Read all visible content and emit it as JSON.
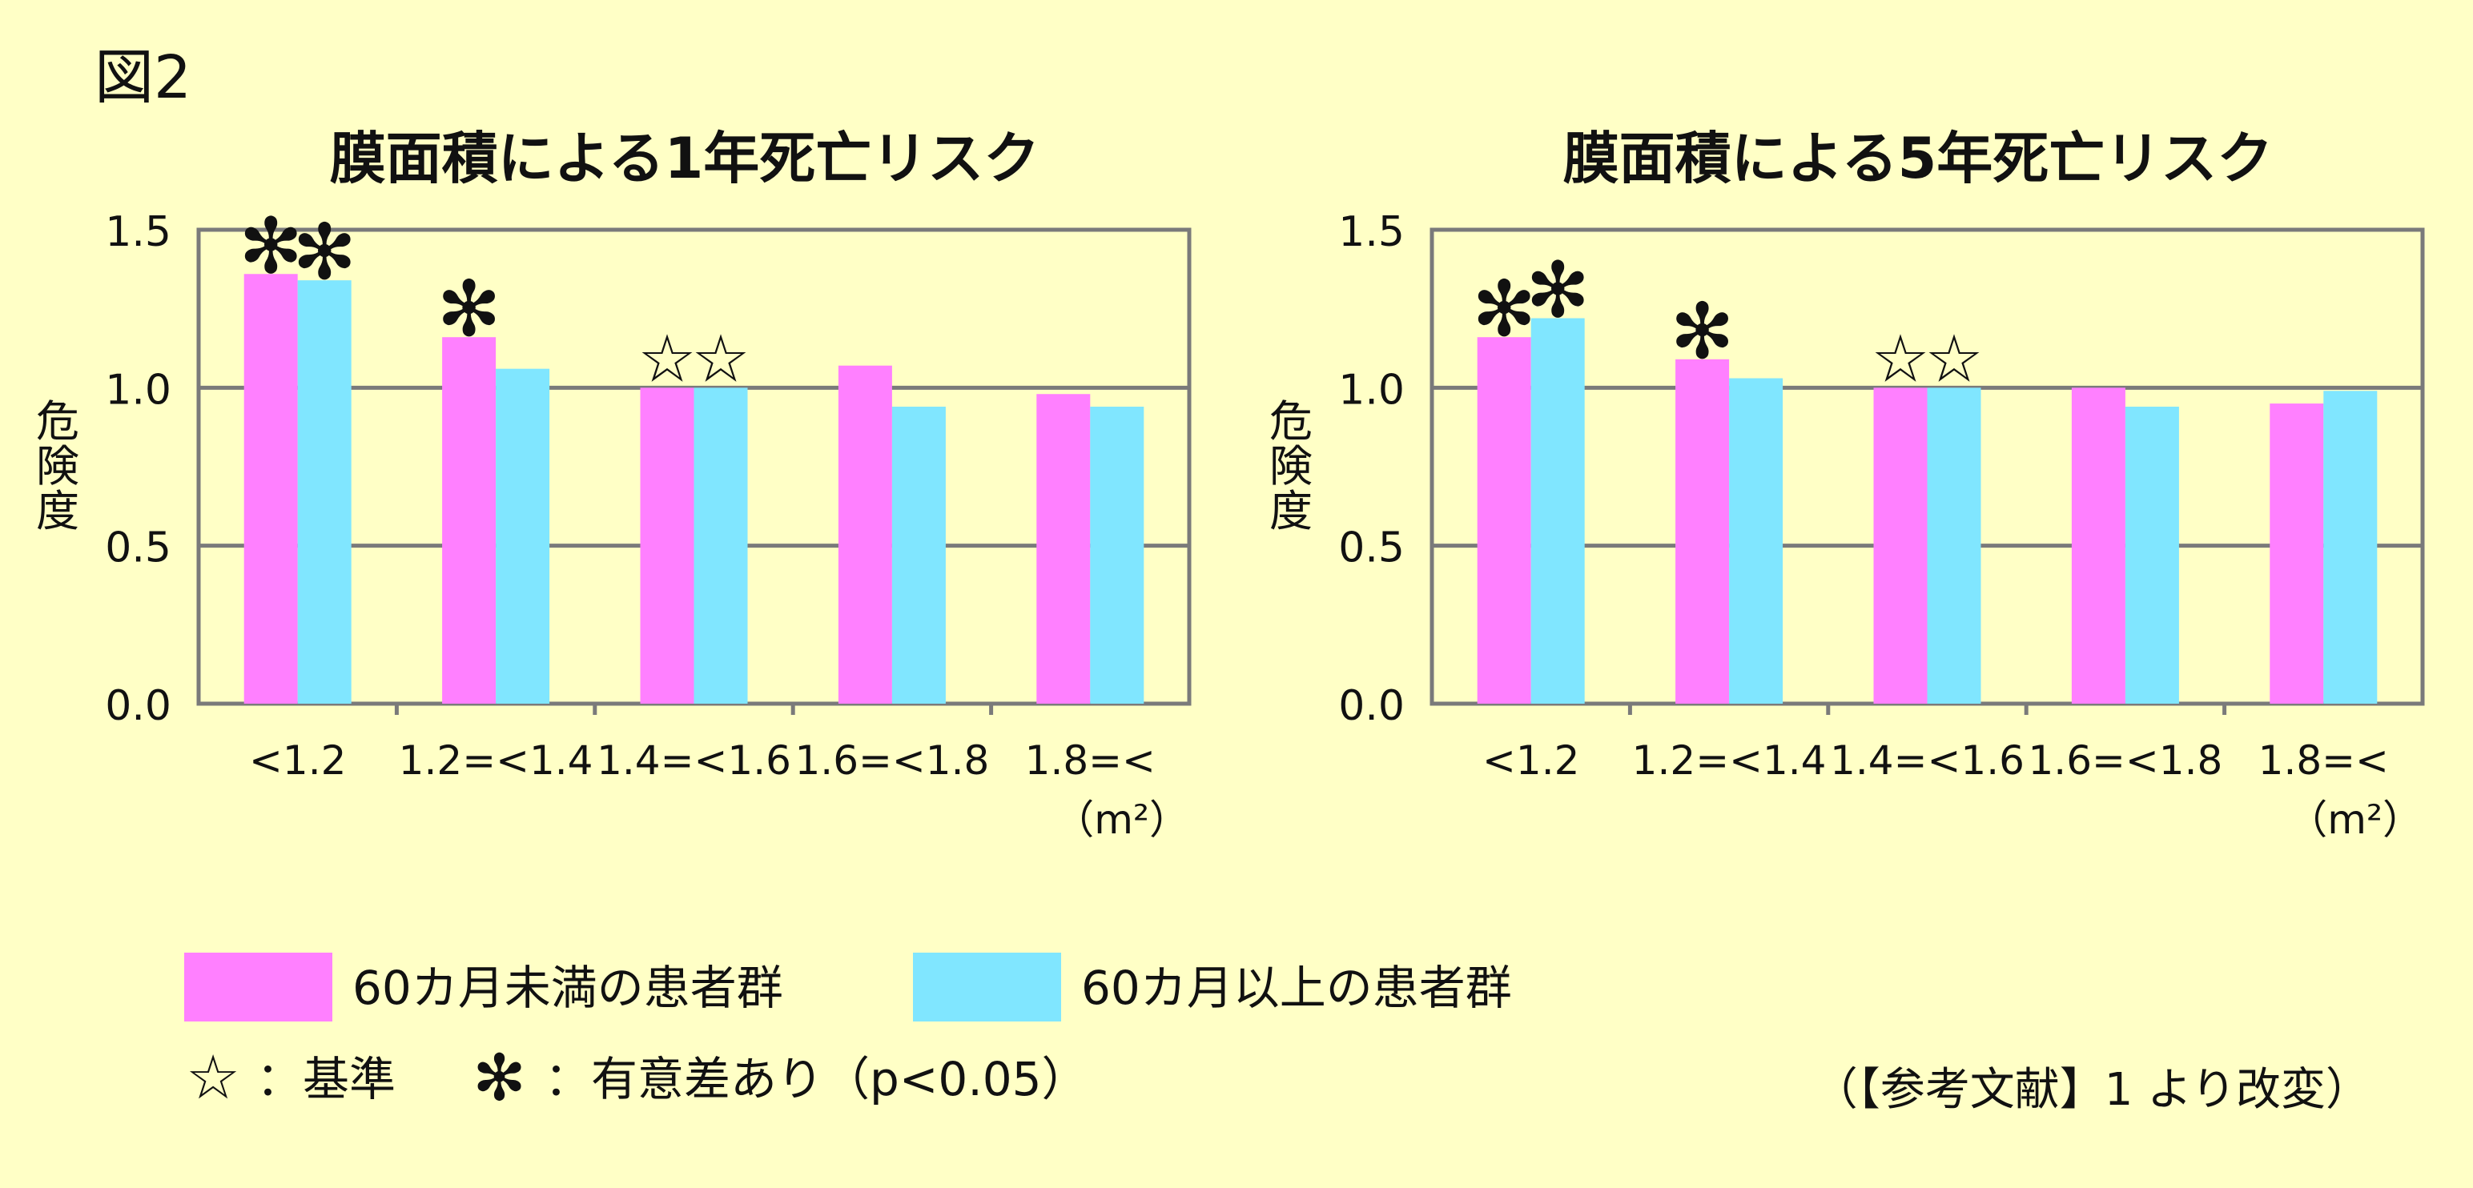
{
  "figure_label": "図2",
  "colors": {
    "background": "#ffffc6",
    "series_lt60": "#ff80ff",
    "series_ge60": "#80e6ff",
    "axis": "#7a7a7a"
  },
  "chart_data": [
    {
      "type": "bar",
      "title": "膜面積による1年死亡リスク",
      "ylabel": "危険度",
      "unit_label": "（m²）",
      "categories": [
        "<1.2",
        "1.2=<1.4",
        "1.4=<1.6",
        "1.6=<1.8",
        "1.8=<"
      ],
      "ylim": [
        0,
        1.5
      ],
      "yticks": [
        "0.0",
        "0.5",
        "1.0",
        "1.5"
      ],
      "grid": true,
      "series": [
        {
          "name": "60カ月未満の患者群",
          "values": [
            1.36,
            1.16,
            1.0,
            1.07,
            0.98
          ],
          "marks": [
            "✻",
            "✻",
            "☆",
            "",
            ""
          ]
        },
        {
          "name": "60カ月以上の患者群",
          "values": [
            1.34,
            1.06,
            1.0,
            0.94,
            0.94
          ],
          "marks": [
            "✻",
            "",
            "☆",
            "",
            ""
          ]
        }
      ]
    },
    {
      "type": "bar",
      "title": "膜面積による5年死亡リスク",
      "ylabel": "危険度",
      "unit_label": "（m²）",
      "categories": [
        "<1.2",
        "1.2=<1.4",
        "1.4=<1.6",
        "1.6=<1.8",
        "1.8=<"
      ],
      "ylim": [
        0,
        1.5
      ],
      "yticks": [
        "0.0",
        "0.5",
        "1.0",
        "1.5"
      ],
      "grid": true,
      "series": [
        {
          "name": "60カ月未満の患者群",
          "values": [
            1.16,
            1.09,
            1.0,
            1.0,
            0.95
          ],
          "marks": [
            "✻",
            "✻",
            "☆",
            "",
            ""
          ]
        },
        {
          "name": "60カ月以上の患者群",
          "values": [
            1.22,
            1.03,
            1.0,
            0.94,
            0.99
          ],
          "marks": [
            "✻",
            "",
            "☆",
            "",
            ""
          ]
        }
      ]
    }
  ],
  "legend": {
    "items": [
      "60カ月未満の患者群",
      "60カ月以上の患者群"
    ],
    "star_symbol": "☆",
    "star_text": "：基準",
    "asterisk_symbol": "✻",
    "asterisk_text": "：有意差あり（p<0.05）"
  },
  "source_note": "（【参考文献】1 より改変）"
}
